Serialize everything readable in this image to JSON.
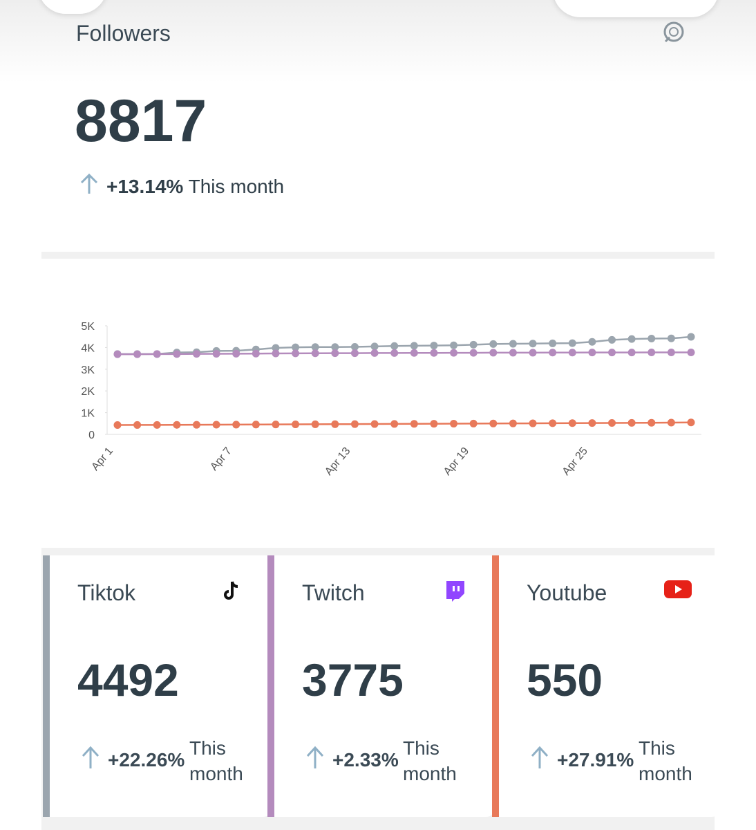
{
  "summary": {
    "title": "Followers",
    "total": "8817",
    "change": "+13.14%",
    "period": "This month"
  },
  "chart_data": {
    "type": "line",
    "categories": [
      "Apr 1",
      null,
      null,
      null,
      null,
      null,
      "Apr 7",
      null,
      null,
      null,
      null,
      null,
      "Apr 13",
      null,
      null,
      null,
      null,
      null,
      "Apr 19",
      null,
      null,
      null,
      null,
      null,
      "Apr 25",
      null,
      null,
      null,
      null,
      null
    ],
    "series": [
      {
        "name": "Tiktok",
        "color": "#9ba5ae",
        "values": [
          3700,
          3700,
          3700,
          3770,
          3780,
          3840,
          3850,
          3910,
          3980,
          4010,
          4020,
          4020,
          4030,
          4050,
          4070,
          4080,
          4090,
          4100,
          4130,
          4160,
          4170,
          4180,
          4190,
          4200,
          4260,
          4350,
          4390,
          4410,
          4420,
          4492
        ]
      },
      {
        "name": "Twitch",
        "color": "#b48bbd",
        "values": [
          3690,
          3690,
          3700,
          3700,
          3705,
          3710,
          3715,
          3720,
          3725,
          3730,
          3735,
          3740,
          3740,
          3745,
          3745,
          3750,
          3750,
          3755,
          3755,
          3760,
          3760,
          3760,
          3765,
          3765,
          3770,
          3770,
          3770,
          3775,
          3775,
          3775
        ]
      },
      {
        "name": "Youtube",
        "color": "#e8795a",
        "values": [
          430,
          432,
          435,
          438,
          440,
          445,
          448,
          452,
          456,
          460,
          464,
          468,
          472,
          476,
          480,
          484,
          488,
          492,
          496,
          500,
          504,
          508,
          512,
          516,
          520,
          525,
          530,
          535,
          540,
          550
        ]
      }
    ],
    "ylim": [
      0,
      5000
    ],
    "yticks": [
      0,
      {
        "value": 1000,
        "label": "1K"
      },
      {
        "value": 2000,
        "label": "2K"
      },
      {
        "value": 3000,
        "label": "3K"
      },
      {
        "value": 4000,
        "label": "4K"
      },
      {
        "value": 5000,
        "label": "5K"
      }
    ]
  },
  "cards": [
    {
      "name": "Tiktok",
      "total": "4492",
      "change": "+22.26%",
      "period": "This month"
    },
    {
      "name": "Twitch",
      "total": "3775",
      "change": "+2.33%",
      "period": "This month"
    },
    {
      "name": "Youtube",
      "total": "550",
      "change": "+27.91%",
      "period": "This month"
    }
  ]
}
